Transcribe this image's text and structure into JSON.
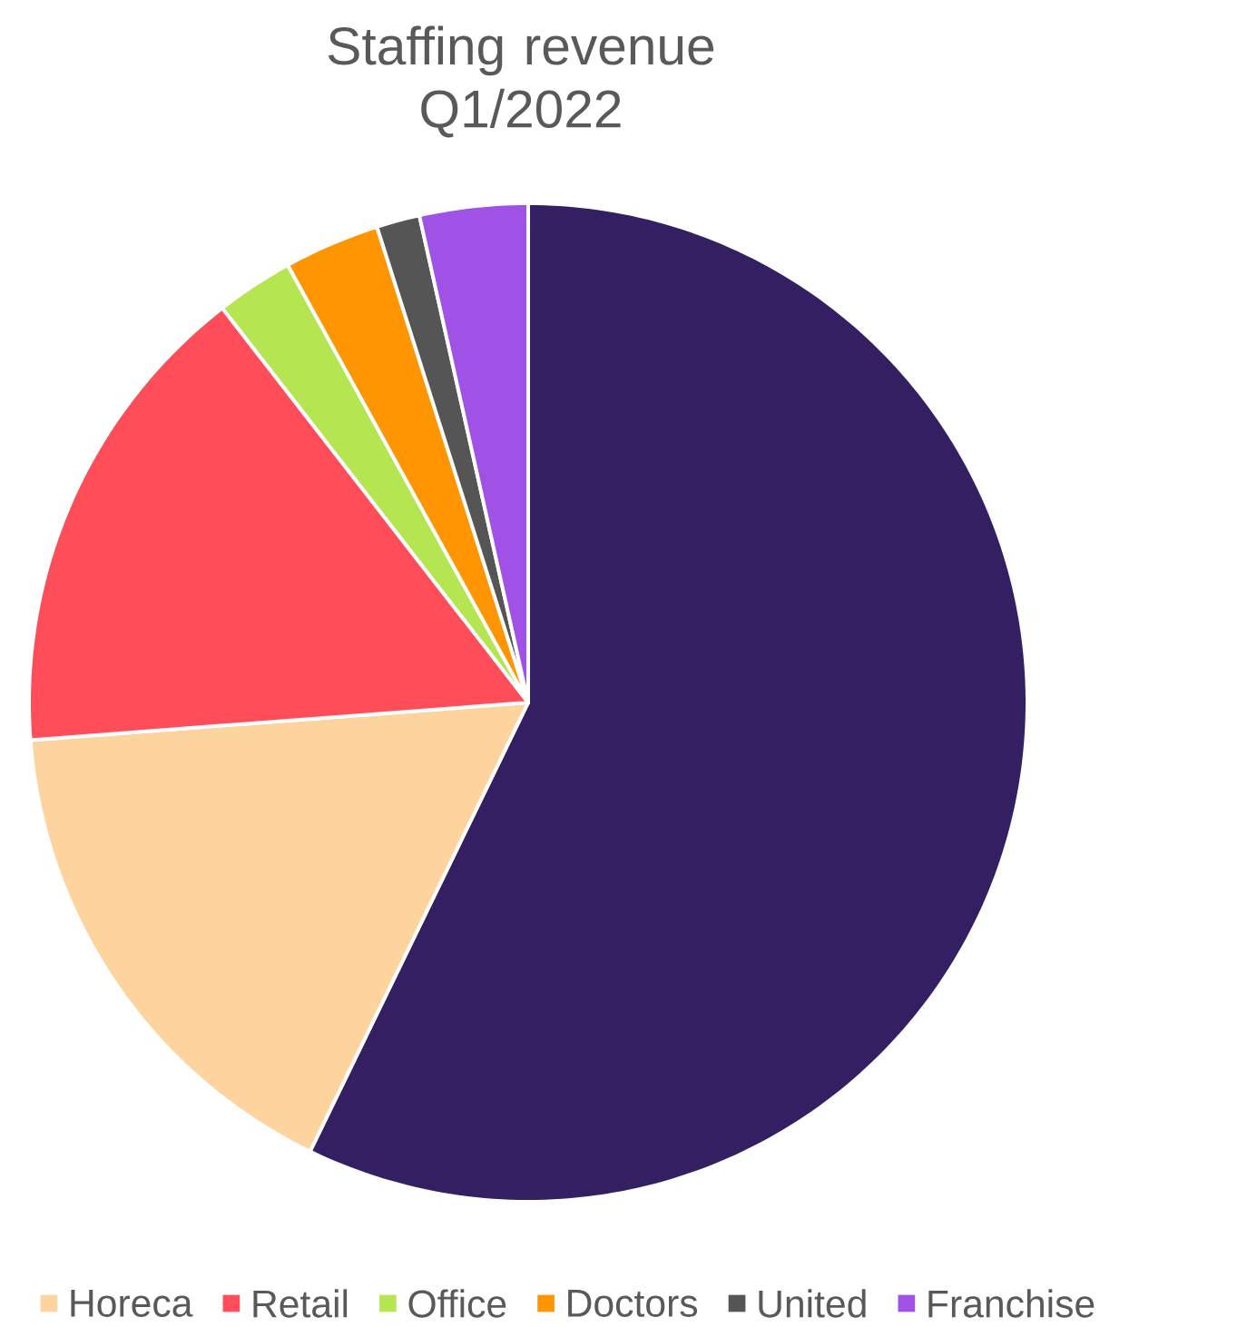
{
  "chart_data": {
    "type": "pie",
    "title": "Staffing revenue Q1/2022",
    "categories": [
      null,
      "Horeca",
      "Retail",
      "Office",
      "Doctors",
      "United",
      "Franchise"
    ],
    "values": [
      57.2,
      16.6,
      15.7,
      2.5,
      3.1,
      1.4,
      3.5
    ],
    "colors": [
      "#341f62",
      "#fdd49e",
      "#ff4d5a",
      "#b5e550",
      "#ff9500",
      "#555555",
      "#a052e6"
    ],
    "legend": "bottom"
  }
}
